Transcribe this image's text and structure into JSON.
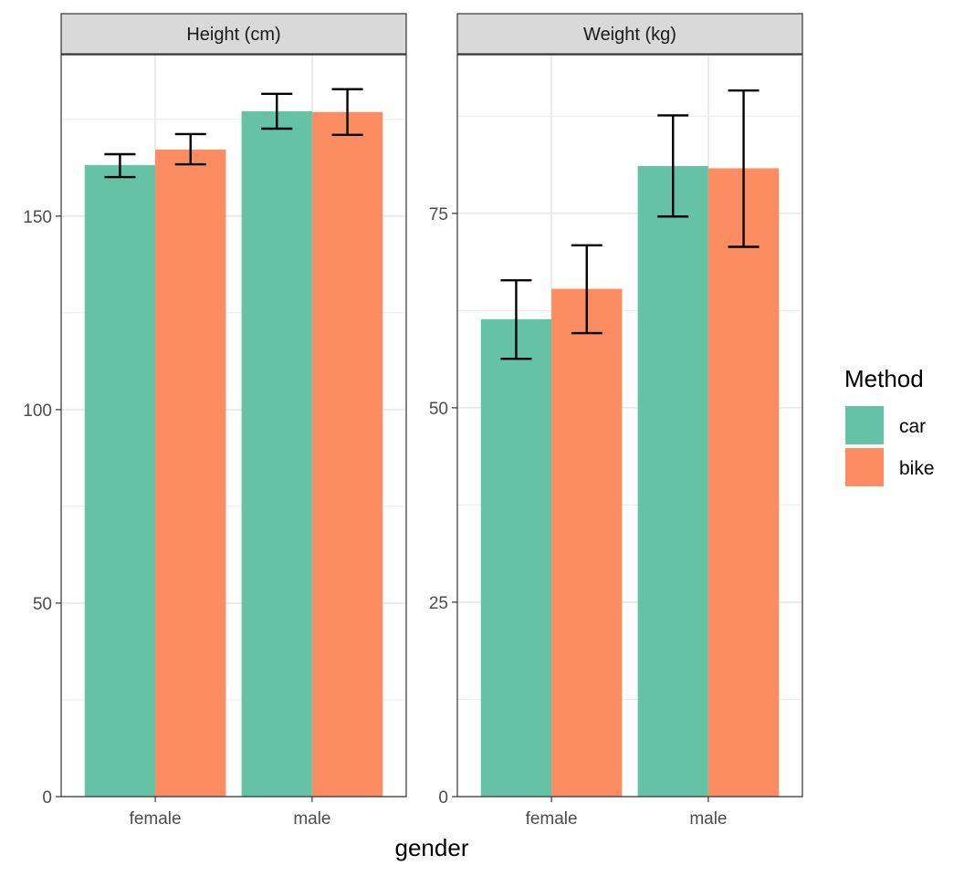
{
  "chart_data": {
    "type": "bar",
    "xlabel": "gender",
    "categories": [
      "female",
      "male"
    ],
    "legend": {
      "title": "Method",
      "position": "right",
      "entries": [
        {
          "name": "car",
          "color": "#66C2A5"
        },
        {
          "name": "bike",
          "color": "#FC8D62"
        }
      ]
    },
    "panels": [
      {
        "title": "Height (cm)",
        "ylim": [
          0,
          191.7
        ],
        "yticks": [
          0,
          50,
          100,
          150
        ],
        "ytick_labels": [
          "0",
          "50",
          "100",
          "150"
        ],
        "minor_gridlines": [
          25,
          75,
          125,
          175
        ],
        "grid": true,
        "series": [
          {
            "name": "car",
            "values": [
              163.2,
              177.1
            ],
            "error_low": [
              160.1,
              172.6
            ],
            "error_high": [
              166.0,
              181.6
            ]
          },
          {
            "name": "bike",
            "values": [
              167.2,
              176.9
            ],
            "error_low": [
              163.4,
              171.0
            ],
            "error_high": [
              171.2,
              182.8
            ]
          }
        ]
      },
      {
        "title": "Weight (kg)",
        "ylim": [
          0,
          95.4
        ],
        "yticks": [
          0,
          25,
          50,
          75
        ],
        "ytick_labels": [
          "0",
          "25",
          "50",
          "75"
        ],
        "minor_gridlines": [
          12.5,
          37.5,
          62.5,
          87.5
        ],
        "grid": true,
        "series": [
          {
            "name": "car",
            "values": [
              61.4,
              81.1
            ],
            "error_low": [
              56.3,
              74.6
            ],
            "error_high": [
              66.4,
              87.6
            ]
          },
          {
            "name": "bike",
            "values": [
              65.3,
              80.8
            ],
            "error_low": [
              59.6,
              70.7
            ],
            "error_high": [
              70.9,
              90.8
            ]
          }
        ]
      }
    ]
  }
}
